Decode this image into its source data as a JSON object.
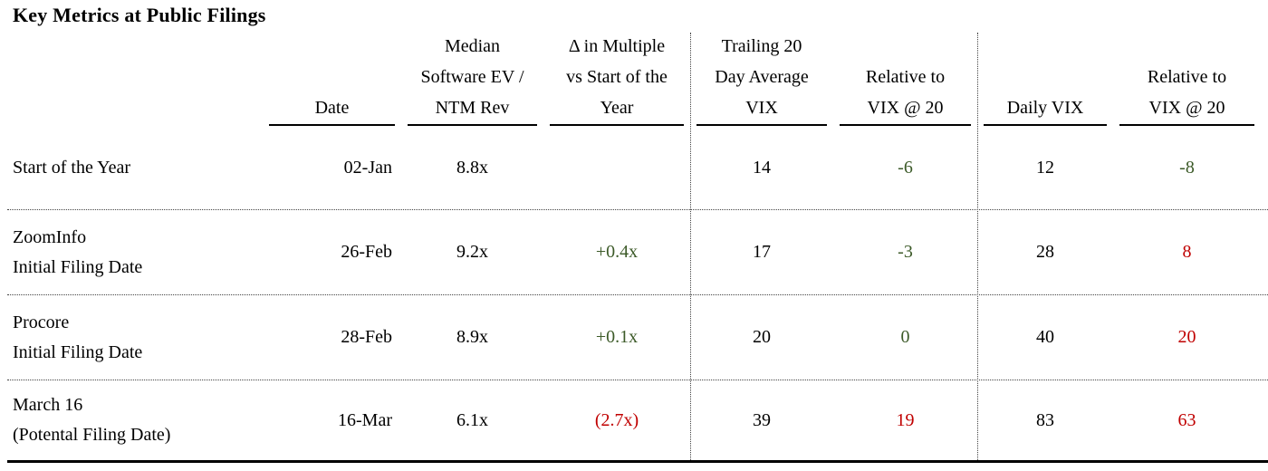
{
  "title": "Key Metrics at Public Filings",
  "colors": {
    "green": "#3c5a28",
    "red": "#c00000",
    "text": "#000000"
  },
  "table": {
    "columns": [
      {
        "id": "label",
        "lines": []
      },
      {
        "id": "date",
        "lines": [
          "Date"
        ]
      },
      {
        "id": "ev_ntm",
        "lines": [
          "Median",
          "Software EV /",
          "NTM Rev"
        ]
      },
      {
        "id": "delta_multiple",
        "lines": [
          "Δ in Multiple",
          "vs Start of the",
          "Year"
        ]
      },
      {
        "id": "trailing_vix",
        "lines": [
          "Trailing 20",
          "Day Average",
          "VIX"
        ]
      },
      {
        "id": "relative_trailing",
        "lines": [
          "Relative to",
          "VIX @ 20"
        ]
      },
      {
        "id": "daily_vix",
        "lines": [
          "Daily VIX"
        ]
      },
      {
        "id": "relative_daily",
        "lines": [
          "Relative to",
          "VIX @ 20"
        ]
      }
    ],
    "rows": [
      {
        "label_lines": [
          "Start of the Year"
        ],
        "date": "02-Jan",
        "ev_ntm": "8.8x",
        "delta": "",
        "delta_color": "text",
        "trailing_vix": "14",
        "rel_trailing": "-6",
        "rel_trailing_color": "green",
        "daily_vix": "12",
        "rel_daily": "-8",
        "rel_daily_color": "green"
      },
      {
        "label_lines": [
          "ZoomInfo",
          "Initial Filing Date"
        ],
        "date": "26-Feb",
        "ev_ntm": "9.2x",
        "delta": "+0.4x",
        "delta_color": "green",
        "trailing_vix": "17",
        "rel_trailing": "-3",
        "rel_trailing_color": "green",
        "daily_vix": "28",
        "rel_daily": "8",
        "rel_daily_color": "red"
      },
      {
        "label_lines": [
          "Procore",
          "Initial Filing Date"
        ],
        "date": "28-Feb",
        "ev_ntm": "8.9x",
        "delta": "+0.1x",
        "delta_color": "green",
        "trailing_vix": "20",
        "rel_trailing": "0",
        "rel_trailing_color": "green",
        "daily_vix": "40",
        "rel_daily": "20",
        "rel_daily_color": "red"
      },
      {
        "label_lines": [
          "March 16",
          "(Potental Filing Date)"
        ],
        "date": "16-Mar",
        "ev_ntm": "6.1x",
        "delta": "(2.7x)",
        "delta_color": "red",
        "trailing_vix": "39",
        "rel_trailing": "19",
        "rel_trailing_color": "red",
        "daily_vix": "83",
        "rel_daily": "63",
        "rel_daily_color": "red"
      }
    ]
  }
}
